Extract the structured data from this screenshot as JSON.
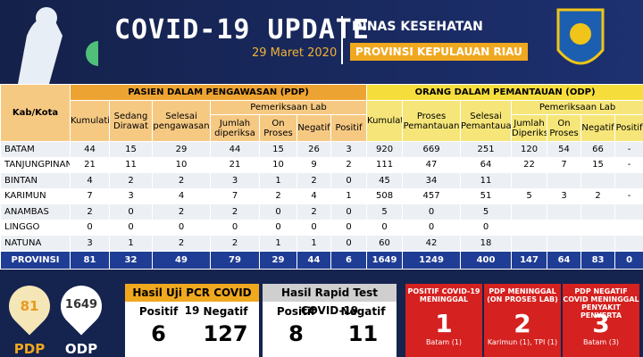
{
  "header": {
    "title": "COVID-19 UPDATE",
    "date": "29 Maret 2020",
    "agency": "DINAS KESEHATAN",
    "province": "PROVINSI KEPULAUAN RIAU"
  },
  "table": {
    "kab_kota": "Kab/Kota",
    "pdp_title": "PASIEN DALAM PENGAWASAN (PDP)",
    "odp_title": "ORANG DALAM PEMANTAUAN (ODP)",
    "pdp_lab": "Pemeriksaan Lab",
    "odp_lab": "Pemeriksaan Lab",
    "pdp_columns": [
      "Kumulatif",
      "Sedang Dirawat",
      "Selesai pengawasan",
      "Jumlah diperiksa",
      "On Proses",
      "Negatif",
      "Positif"
    ],
    "odp_columns": [
      "Kumulatif",
      "Proses Pemantauan",
      "Selesai Pemantauan",
      "Jumlah Diperiksa",
      "On Proses",
      "Negatif",
      "Positif"
    ],
    "rows": [
      [
        "BATAM",
        44,
        15,
        29,
        44,
        15,
        26,
        3,
        920,
        669,
        251,
        120,
        54,
        66,
        "-"
      ],
      [
        "TANJUNGPINANG",
        21,
        11,
        10,
        21,
        10,
        9,
        2,
        111,
        47,
        64,
        22,
        7,
        15,
        "-"
      ],
      [
        "BINTAN",
        4,
        2,
        2,
        3,
        1,
        2,
        0,
        45,
        34,
        11,
        null,
        null,
        null,
        null
      ],
      [
        "KARIMUN",
        7,
        3,
        4,
        7,
        2,
        4,
        1,
        508,
        457,
        51,
        5,
        3,
        2,
        "-"
      ],
      [
        "ANAMBAS",
        2,
        0,
        2,
        2,
        0,
        2,
        0,
        5,
        0,
        5,
        null,
        null,
        null,
        null
      ],
      [
        "LINGGO",
        0,
        0,
        0,
        0,
        0,
        0,
        0,
        0,
        0,
        0,
        null,
        null,
        null,
        null
      ],
      [
        "NATUNA",
        3,
        1,
        2,
        2,
        1,
        1,
        0,
        60,
        42,
        18,
        null,
        null,
        null,
        null
      ]
    ],
    "total": [
      "PROVINSI",
      81,
      32,
      49,
      79,
      29,
      44,
      6,
      1649,
      1249,
      400,
      147,
      64,
      83,
      0
    ]
  },
  "summary": {
    "pdp_value": 81,
    "pdp_label": "PDP",
    "odp_value": 1649,
    "odp_label": "ODP",
    "pcr": {
      "title": "Hasil Uji PCR COVID 19",
      "positive_label": "Positif",
      "positive": 6,
      "negative_label": "Negatif",
      "negative": 127
    },
    "rapid": {
      "title": "Hasil Rapid Test COVID-19",
      "positive_label": "Positif",
      "positive": 8,
      "negative_label": "Negatif",
      "negative": 11
    },
    "deaths": [
      {
        "title": "POSITIF COVID-19 MENINGGAL",
        "value": 1,
        "detail": "Batam (1)"
      },
      {
        "title": "PDP MENINGGAL (ON PROSES LAB)",
        "value": 2,
        "detail": "Karimun (1), TPI (1)"
      },
      {
        "title": "PDP NEGATIF COVID MENINGGAL PENYAKIT PENYERTA",
        "value": 3,
        "detail": "Batam (3)"
      }
    ]
  }
}
